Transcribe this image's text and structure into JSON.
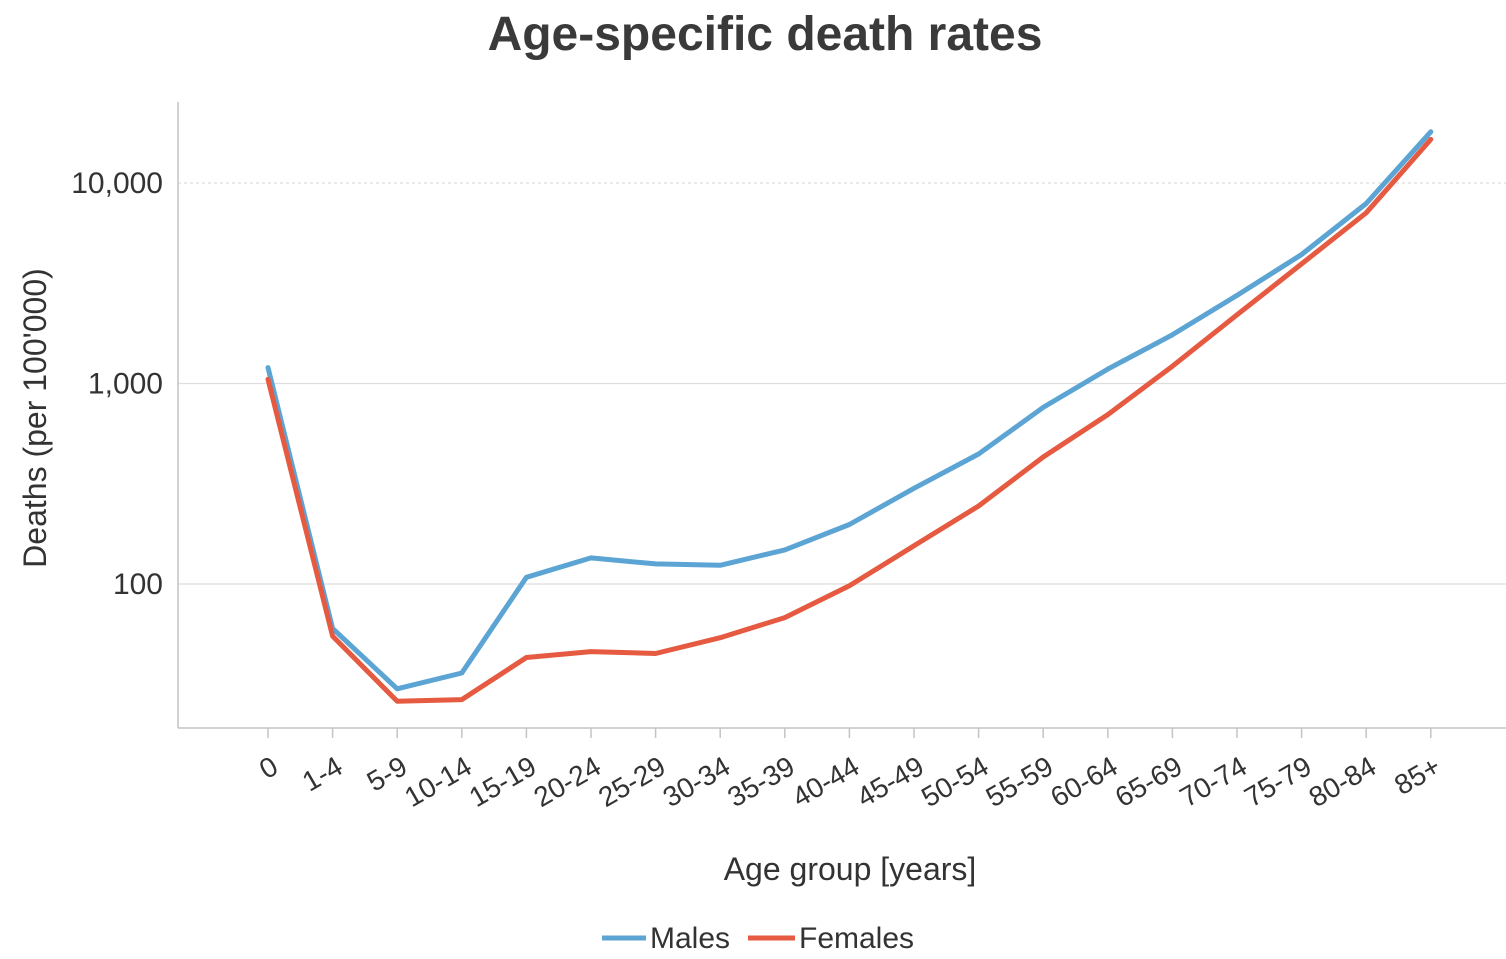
{
  "chart_data": {
    "type": "line",
    "title": "Age-specific death rates",
    "xlabel": "Age group [years]",
    "ylabel": "Deaths (per 100'000)",
    "y_scale": "log",
    "ylim": [
      17,
      24000
    ],
    "yticks": [
      {
        "value": 10000,
        "label": "10,000"
      },
      {
        "value": 1000,
        "label": "1,000"
      },
      {
        "value": 100,
        "label": "100"
      }
    ],
    "grid": true,
    "legend_position": "bottom",
    "categories": [
      "0",
      "1-4",
      "5-9",
      "10-14",
      "15-19",
      "20-24",
      "25-29",
      "30-34",
      "35-39",
      "40-44",
      "45-49",
      "50-54",
      "55-59",
      "60-64",
      "65-69",
      "70-74",
      "75-79",
      "80-84",
      "85+"
    ],
    "series": [
      {
        "name": "Males",
        "color": "#5ba4d4",
        "values": [
          1200,
          60,
          30,
          36,
          108,
          135,
          126,
          124,
          148,
          198,
          300,
          445,
          760,
          1180,
          1750,
          2750,
          4400,
          7900,
          18000
        ]
      },
      {
        "name": "Females",
        "color": "#e55a40",
        "values": [
          1050,
          55,
          26,
          26.5,
          43,
          46,
          45,
          54,
          68,
          98,
          155,
          245,
          430,
          700,
          1220,
          2200,
          3950,
          7100,
          16500
        ]
      }
    ]
  }
}
